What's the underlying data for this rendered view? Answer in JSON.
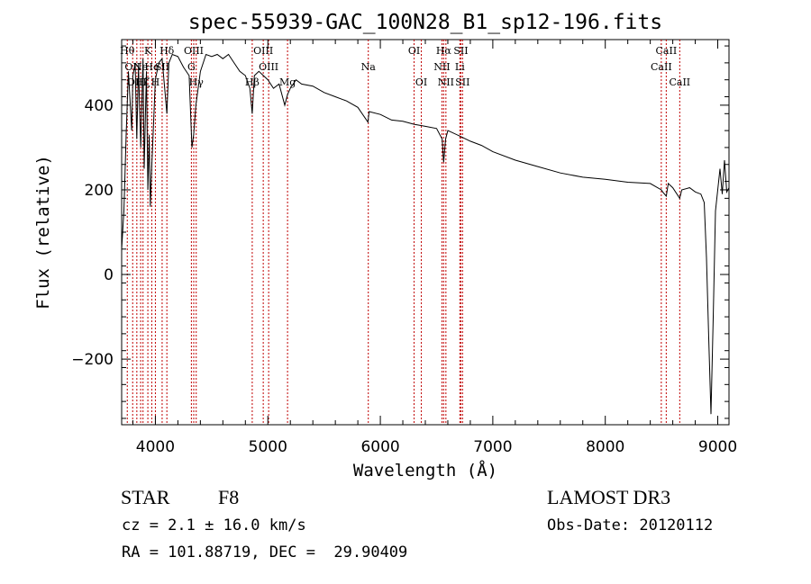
{
  "chart_data": {
    "type": "line",
    "title": "spec-55939-GAC_100N28_B1_sp12-196.fits",
    "xlabel": "Wavelength (Å)",
    "ylabel": "Flux (relative)",
    "xlim": [
      3700,
      9100
    ],
    "ylim": [
      -355,
      555
    ],
    "xticks": [
      4000,
      5000,
      6000,
      7000,
      8000,
      9000
    ],
    "yticks": [
      -200,
      0,
      200,
      400
    ],
    "series": [
      {
        "name": "flux",
        "x": [
          3700,
          3720,
          3740,
          3760,
          3790,
          3800,
          3820,
          3835,
          3850,
          3870,
          3890,
          3900,
          3920,
          3933,
          3945,
          3955,
          3968,
          3980,
          4000,
          4030,
          4060,
          4102,
          4120,
          4150,
          4200,
          4250,
          4300,
          4325,
          4340,
          4360,
          4400,
          4450,
          4500,
          4550,
          4600,
          4650,
          4700,
          4750,
          4800,
          4840,
          4861,
          4880,
          4920,
          4960,
          5000,
          5050,
          5100,
          5150,
          5175,
          5200,
          5250,
          5300,
          5400,
          5500,
          5600,
          5700,
          5800,
          5890,
          5900,
          6000,
          6100,
          6200,
          6300,
          6400,
          6500,
          6550,
          6563,
          6580,
          6600,
          6700,
          6800,
          6900,
          7000,
          7200,
          7400,
          7600,
          7800,
          8000,
          8200,
          8400,
          8498,
          8510,
          8542,
          8560,
          8600,
          8662,
          8680,
          8750,
          8800,
          8850,
          8880,
          8900,
          8920,
          8940,
          8960,
          8980,
          9000,
          9020,
          9040,
          9060,
          9080,
          9100
        ],
        "y": [
          60,
          150,
          330,
          480,
          340,
          470,
          500,
          320,
          490,
          300,
          510,
          250,
          480,
          200,
          330,
          160,
          260,
          330,
          460,
          500,
          510,
          380,
          500,
          520,
          515,
          490,
          470,
          300,
          330,
          400,
          480,
          520,
          515,
          520,
          510,
          520,
          500,
          480,
          470,
          440,
          380,
          470,
          480,
          470,
          460,
          440,
          450,
          400,
          425,
          440,
          460,
          450,
          445,
          430,
          420,
          410,
          395,
          360,
          385,
          378,
          365,
          362,
          355,
          350,
          345,
          320,
          265,
          320,
          340,
          328,
          315,
          305,
          290,
          270,
          255,
          240,
          230,
          225,
          218,
          215,
          200,
          195,
          185,
          215,
          205,
          180,
          200,
          205,
          195,
          190,
          170,
          40,
          -150,
          -330,
          -100,
          150,
          200,
          250,
          190,
          270,
          195,
          205
        ]
      }
    ],
    "lines": [
      {
        "wl": 3750,
        "label": "Hθ",
        "row": 0
      },
      {
        "wl": 3798,
        "label": "OII",
        "row": 1
      },
      {
        "wl": 3835,
        "label": "OIII",
        "row": 2
      },
      {
        "wl": 3869,
        "label": "Ne",
        "row": 1
      },
      {
        "wl": 3890,
        "label": "Hζ",
        "row": 2
      },
      {
        "wl": 3933,
        "label": "K",
        "row": 0
      },
      {
        "wl": 3968,
        "label": "He",
        "row": 1
      },
      {
        "wl": 4000,
        "label": "H",
        "row": 2
      },
      {
        "wl": 4060,
        "label": "SII",
        "row": 1
      },
      {
        "wl": 4102,
        "label": "Hδ",
        "row": 0
      },
      {
        "wl": 4320,
        "label": "G",
        "row": 1
      },
      {
        "wl": 4341,
        "label": "OIII",
        "row": 0
      },
      {
        "wl": 4363,
        "label": "Hγ",
        "row": 2
      },
      {
        "wl": 4861,
        "label": "Hβ",
        "row": 2
      },
      {
        "wl": 4959,
        "label": "OIII",
        "row": 0
      },
      {
        "wl": 5007,
        "label": "OIII",
        "row": 1
      },
      {
        "wl": 5175,
        "label": "Mg",
        "row": 2
      },
      {
        "wl": 5893,
        "label": "Na",
        "row": 1
      },
      {
        "wl": 6300,
        "label": "OI",
        "row": 0
      },
      {
        "wl": 6364,
        "label": "OI",
        "row": 2
      },
      {
        "wl": 6548,
        "label": "NII",
        "row": 1
      },
      {
        "wl": 6563,
        "label": "Hα",
        "row": 0
      },
      {
        "wl": 6583,
        "label": "NII",
        "row": 2
      },
      {
        "wl": 6707,
        "label": "Li",
        "row": 1
      },
      {
        "wl": 6716,
        "label": "SII",
        "row": 0
      },
      {
        "wl": 6731,
        "label": "SII",
        "row": 2
      },
      {
        "wl": 8498,
        "label": "CaII",
        "row": 1
      },
      {
        "wl": 8542,
        "label": "CaII",
        "row": 0
      },
      {
        "wl": 8662,
        "label": "CaII",
        "row": 2
      }
    ]
  },
  "info": {
    "class_label": "STAR",
    "subclass": "F8",
    "survey": "LAMOST DR3",
    "cz": "cz = 2.1 ± 16.0 km/s",
    "obs_date": "Obs-Date: 20120112",
    "coords": "RA = 101.88719, DEC =  29.90409"
  }
}
